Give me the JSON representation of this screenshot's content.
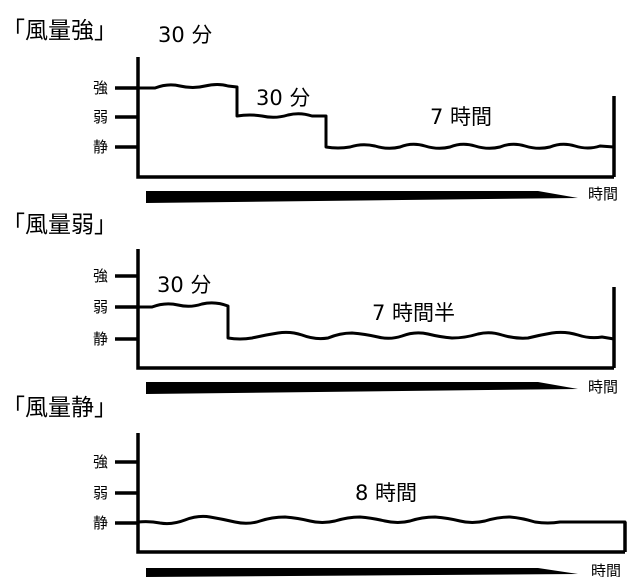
{
  "levels": [
    "強",
    "弱",
    "静"
  ],
  "time_label": "時間",
  "panels": [
    {
      "title": "「風量強」",
      "title_duration": "30 分",
      "segments": [
        {
          "level": "強"
        },
        {
          "level": "弱",
          "label": "30 分"
        },
        {
          "level": "静",
          "label": "7 時間"
        }
      ]
    },
    {
      "title": "「風量弱」",
      "segments": [
        {
          "level": "弱",
          "label": "30 分"
        },
        {
          "level": "静",
          "label": "7 時間半"
        }
      ]
    },
    {
      "title": "「風量静」",
      "segments": [
        {
          "level": "静",
          "label": "8 時間"
        }
      ]
    }
  ]
}
